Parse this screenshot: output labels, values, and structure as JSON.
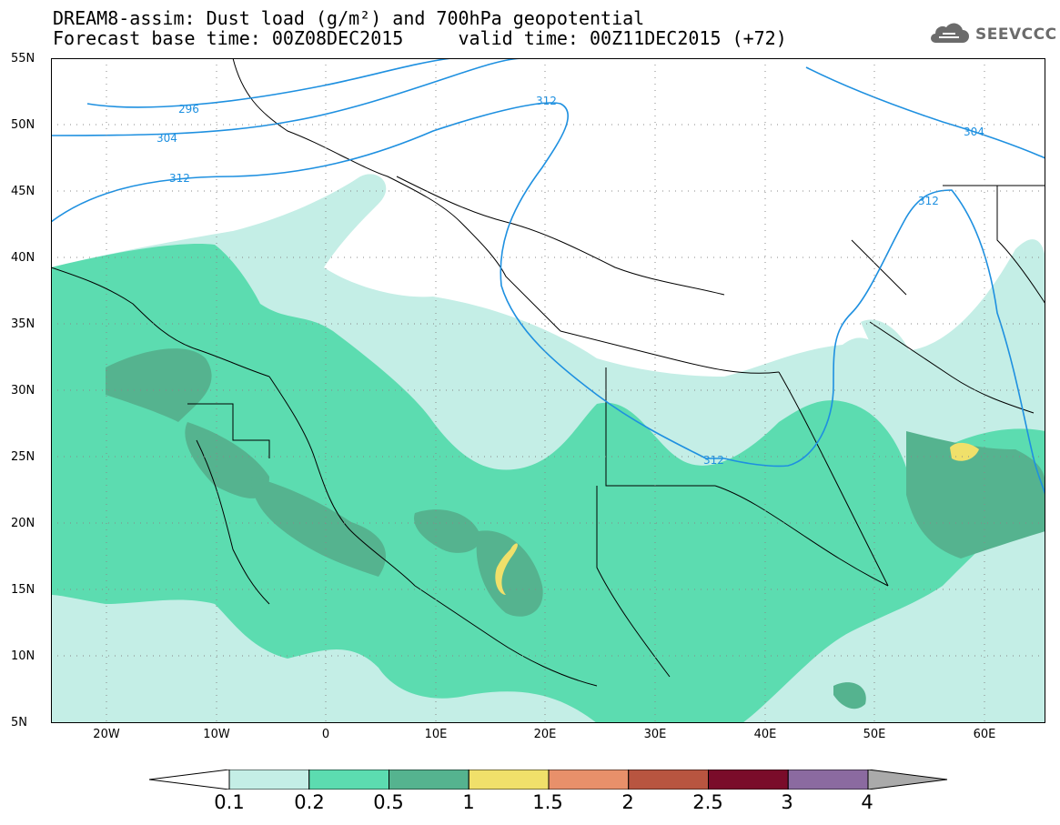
{
  "title": {
    "line1": "DREAM8-assim: Dust load (g/m²) and 700hPa geopotential",
    "line2": "Forecast base time: 00Z08DEC2015     valid time: 00Z11DEC2015 (+72)"
  },
  "logo": {
    "text": "SEEVCCC",
    "icon": "cloud-icon"
  },
  "axes": {
    "lat_labels": [
      "55N",
      "50N",
      "45N",
      "40N",
      "35N",
      "30N",
      "25N",
      "20N",
      "15N",
      "10N",
      "5N"
    ],
    "lon_labels": [
      "20W",
      "10W",
      "0",
      "10E",
      "20E",
      "30E",
      "40E",
      "50E",
      "60E"
    ],
    "lon_range": [
      -25,
      65
    ],
    "lat_range": [
      5,
      55
    ]
  },
  "contour_labels": [
    "296",
    "304",
    "312",
    "312",
    "312",
    "304",
    "312"
  ],
  "colorbar": {
    "labels": [
      "0.1",
      "0.2",
      "0.5",
      "1",
      "1.5",
      "2",
      "2.5",
      "3",
      "4"
    ],
    "colors": [
      "#c4eee6",
      "#5cdcb0",
      "#55b38f",
      "#f0e06a",
      "#e8906a",
      "#b85540",
      "#7a0c2a",
      "#8b6aa0",
      "#aaaaaa"
    ],
    "extend_low_color": "#ffffff",
    "extend_high_color": "#aaaaaa"
  },
  "colors": {
    "contour": "#1e90e0",
    "border": "#000000"
  }
}
